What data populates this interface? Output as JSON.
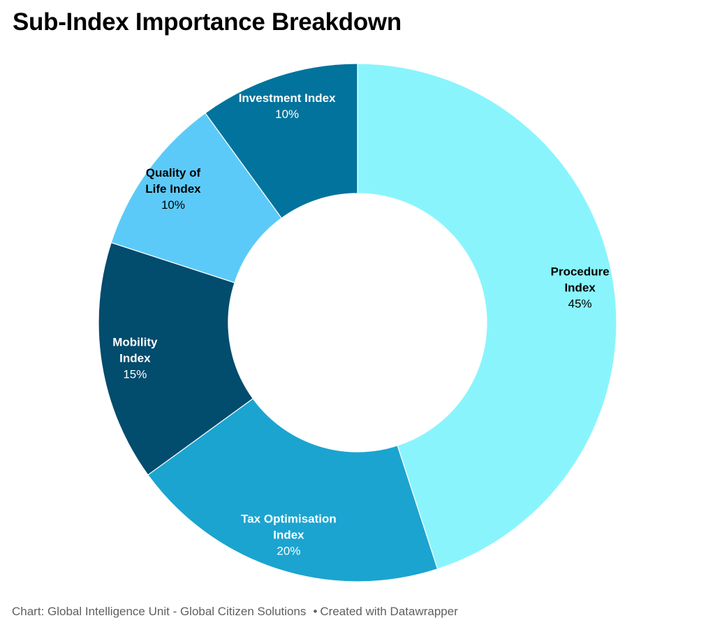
{
  "title": "Sub-Index Importance Breakdown",
  "footer": {
    "source": "Chart: Global Intelligence Unit - Global Citizen Solutions",
    "separator": "•",
    "credit": "Created with Datawrapper"
  },
  "chart_data": {
    "type": "pie",
    "subtype": "donut",
    "title": "Sub-Index Importance Breakdown",
    "legend": "none (direct labels on slices)",
    "slices": [
      {
        "label": "Procedure Index",
        "value": 45,
        "display": "45%",
        "color": "#8af4fd",
        "text_color": "#000000"
      },
      {
        "label": "Tax Optimisation Index",
        "value": 20,
        "display": "20%",
        "color": "#1ba4d0",
        "text_color": "#ffffff"
      },
      {
        "label": "Mobility Index",
        "value": 15,
        "display": "15%",
        "color": "#024c6e",
        "text_color": "#ffffff"
      },
      {
        "label": "Quality of Life Index",
        "value": 10,
        "display": "10%",
        "color": "#5ccaf8",
        "text_color": "#000000"
      },
      {
        "label": "Investment Index",
        "value": 10,
        "display": "10%",
        "color": "#02739d",
        "text_color": "#ffffff"
      }
    ]
  }
}
